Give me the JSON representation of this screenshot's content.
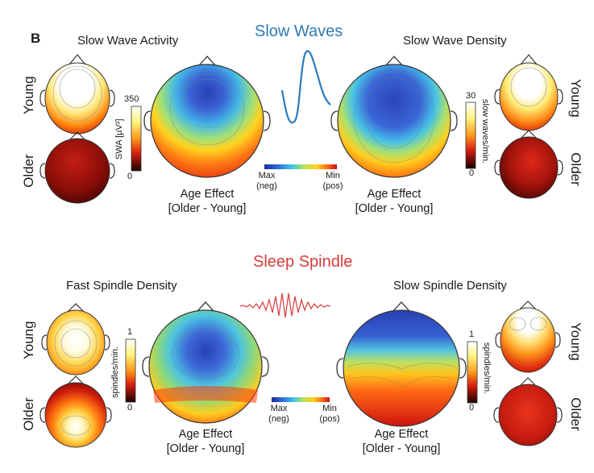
{
  "panel_letter": "B",
  "slow_waves": {
    "section_title": "Slow Waves",
    "left_title": "Slow Wave Activity",
    "right_title": "Slow Wave Density",
    "young_label": "Young",
    "older_label": "Older",
    "left_scale": {
      "max": "350",
      "min": "0",
      "unit": "SWA  [µV²]"
    },
    "right_scale": {
      "max": "30",
      "min": "0",
      "unit": "slow waves/min."
    },
    "age_effect_line1": "Age Effect",
    "age_effect_line2": "[Older - Young]",
    "diff_scale": {
      "left_line1": "Max",
      "left_line2": "(neg)",
      "right_line1": "Min",
      "right_line2": "(pos)"
    }
  },
  "spindles": {
    "section_title": "Sleep Spindle",
    "left_title": "Fast Spindle Density",
    "right_title": "Slow Spindle Density",
    "young_label": "Young",
    "older_label": "Older",
    "left_scale": {
      "max": "1",
      "min": "0",
      "unit": "spindles/min."
    },
    "right_scale": {
      "max": "1",
      "min": "0",
      "unit": "spindles/min."
    },
    "age_effect_line1": "Age Effect",
    "age_effect_line2": "[Older - Young]",
    "diff_scale": {
      "left_line1": "Max",
      "left_line2": "(neg)",
      "right_line1": "Min",
      "right_line2": "(pos)"
    }
  },
  "colors": {
    "section_blue": "#2b7bb9",
    "section_red": "#d93b3b"
  }
}
